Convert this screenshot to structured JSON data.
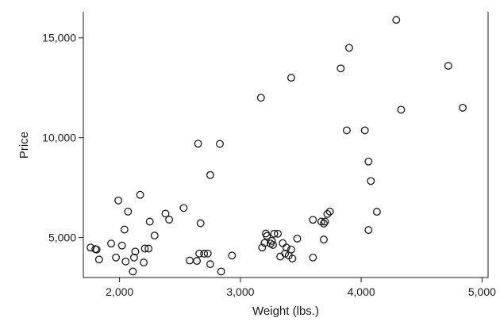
{
  "chart_data": {
    "type": "scatter",
    "title": "",
    "xlabel": "Weight (lbs.)",
    "ylabel": "Price",
    "xlim": [
      1700,
      5050
    ],
    "ylim": [
      3000,
      16300
    ],
    "x_ticks": [
      2000,
      3000,
      4000,
      5000
    ],
    "x_tick_labels": [
      "2,000",
      "3,000",
      "4,000",
      "5,000"
    ],
    "y_ticks": [
      5000,
      10000,
      15000
    ],
    "y_tick_labels": [
      "5,000",
      "10,000",
      "15,000"
    ],
    "grid": false,
    "legend": false,
    "marker_style": "hollow-circle",
    "marker_color": "#1a1a1a",
    "points": [
      {
        "x": 1760,
        "y": 4500
      },
      {
        "x": 1800,
        "y": 4420
      },
      {
        "x": 1810,
        "y": 4400
      },
      {
        "x": 1830,
        "y": 3900
      },
      {
        "x": 1930,
        "y": 4700
      },
      {
        "x": 1970,
        "y": 4000
      },
      {
        "x": 1990,
        "y": 6860
      },
      {
        "x": 2020,
        "y": 4600
      },
      {
        "x": 2040,
        "y": 5400
      },
      {
        "x": 2050,
        "y": 3800
      },
      {
        "x": 2070,
        "y": 6300
      },
      {
        "x": 2110,
        "y": 3300
      },
      {
        "x": 2120,
        "y": 4000
      },
      {
        "x": 2130,
        "y": 4300
      },
      {
        "x": 2170,
        "y": 7140
      },
      {
        "x": 2200,
        "y": 3750
      },
      {
        "x": 2210,
        "y": 4450
      },
      {
        "x": 2240,
        "y": 4450
      },
      {
        "x": 2250,
        "y": 5800
      },
      {
        "x": 2290,
        "y": 5100
      },
      {
        "x": 2380,
        "y": 6200
      },
      {
        "x": 2410,
        "y": 5900
      },
      {
        "x": 2530,
        "y": 6480
      },
      {
        "x": 2580,
        "y": 3850
      },
      {
        "x": 2640,
        "y": 3830
      },
      {
        "x": 2650,
        "y": 9700
      },
      {
        "x": 2660,
        "y": 4200
      },
      {
        "x": 2670,
        "y": 5720
      },
      {
        "x": 2700,
        "y": 4190
      },
      {
        "x": 2730,
        "y": 4200
      },
      {
        "x": 2750,
        "y": 3670
      },
      {
        "x": 2750,
        "y": 8130
      },
      {
        "x": 2830,
        "y": 9690
      },
      {
        "x": 2840,
        "y": 3300
      },
      {
        "x": 2930,
        "y": 4100
      },
      {
        "x": 3170,
        "y": 12000
      },
      {
        "x": 3180,
        "y": 4500
      },
      {
        "x": 3200,
        "y": 4730
      },
      {
        "x": 3210,
        "y": 5200
      },
      {
        "x": 3220,
        "y": 5080
      },
      {
        "x": 3250,
        "y": 4700
      },
      {
        "x": 3260,
        "y": 4830
      },
      {
        "x": 3270,
        "y": 4630
      },
      {
        "x": 3280,
        "y": 5190
      },
      {
        "x": 3310,
        "y": 5190
      },
      {
        "x": 3330,
        "y": 4050
      },
      {
        "x": 3350,
        "y": 4720
      },
      {
        "x": 3370,
        "y": 4200
      },
      {
        "x": 3380,
        "y": 4500
      },
      {
        "x": 3400,
        "y": 4100
      },
      {
        "x": 3420,
        "y": 4400
      },
      {
        "x": 3420,
        "y": 13000
      },
      {
        "x": 3430,
        "y": 3950
      },
      {
        "x": 3470,
        "y": 4950
      },
      {
        "x": 3600,
        "y": 4000
      },
      {
        "x": 3600,
        "y": 5890
      },
      {
        "x": 3670,
        "y": 5800
      },
      {
        "x": 3690,
        "y": 4900
      },
      {
        "x": 3690,
        "y": 5700
      },
      {
        "x": 3700,
        "y": 5800
      },
      {
        "x": 3720,
        "y": 6180
      },
      {
        "x": 3740,
        "y": 6300
      },
      {
        "x": 3830,
        "y": 13470
      },
      {
        "x": 3880,
        "y": 10370
      },
      {
        "x": 3900,
        "y": 14500
      },
      {
        "x": 4030,
        "y": 10370
      },
      {
        "x": 4060,
        "y": 8810
      },
      {
        "x": 4060,
        "y": 5380
      },
      {
        "x": 4080,
        "y": 7830
      },
      {
        "x": 4130,
        "y": 6290
      },
      {
        "x": 4290,
        "y": 15900
      },
      {
        "x": 4330,
        "y": 11400
      },
      {
        "x": 4720,
        "y": 13600
      },
      {
        "x": 4840,
        "y": 11500
      }
    ]
  }
}
